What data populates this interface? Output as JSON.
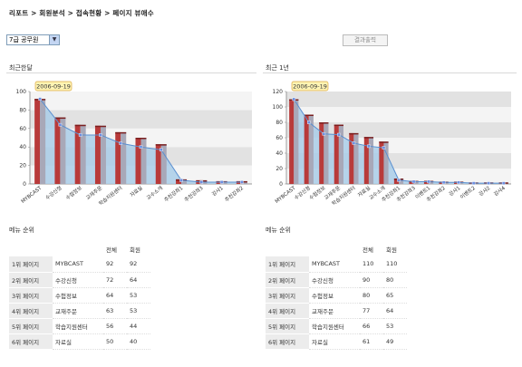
{
  "breadcrumb": "리포트 > 회원분석 > 접속현황 > 페이지 뷰애수",
  "filter": {
    "selected": "7급 공무원"
  },
  "result_button": "결과출력",
  "panels": [
    {
      "title": "최근한달",
      "chart_data": {
        "type": "bar",
        "date_label": "2006-09-19",
        "ylim": [
          0,
          100
        ],
        "yticks": [
          0,
          20,
          40,
          60,
          80,
          100
        ],
        "categories": [
          "MYBCAST",
          "수강신청",
          "수험정보",
          "교재주문",
          "학습지원센터",
          "자료실",
          "교수소개",
          "추천강좌1",
          "추천강좌3",
          "강사1",
          "추천강좌2"
        ],
        "series": [
          {
            "values": [
              92,
              72,
              64,
              63,
              56,
              50,
              43,
              5,
              4,
              3,
              3
            ]
          },
          {
            "values": [
              92,
              64,
              53,
              53,
              44,
              40,
              37,
              4,
              2,
              2,
              2
            ]
          }
        ]
      }
    },
    {
      "title": "최근 1년",
      "chart_data": {
        "type": "bar",
        "date_label": "2006-09-19",
        "ylim": [
          0,
          120
        ],
        "yticks": [
          0,
          20,
          40,
          60,
          80,
          100,
          120
        ],
        "categories": [
          "MYBCAST",
          "수강신청",
          "수험정보",
          "교재주문",
          "학습지원센터",
          "자료실",
          "교수소개",
          "추천강좌1",
          "추천강좌3",
          "이벤트1",
          "추천강좌2",
          "강사1",
          "이벤트2",
          "강사2",
          "강사4"
        ],
        "series": [
          {
            "values": [
              110,
              90,
              80,
              77,
              66,
              61,
              55,
              7,
              4,
              4,
              3,
              3,
              2,
              2,
              2
            ]
          },
          {
            "values": [
              110,
              80,
              65,
              64,
              53,
              49,
              47,
              5,
              3,
              3,
              2,
              2,
              1,
              1,
              1
            ]
          }
        ]
      }
    }
  ],
  "menu_rank": {
    "title": "메뉴 순위",
    "col_total": "전체",
    "col_member": "회원",
    "left": [
      {
        "rank": "1위 페이지",
        "name": "MYBCAST",
        "total": "92",
        "member": "92"
      },
      {
        "rank": "2위 페이지",
        "name": "수강신청",
        "total": "72",
        "member": "64"
      },
      {
        "rank": "3위 페이지",
        "name": "수험정보",
        "total": "64",
        "member": "53"
      },
      {
        "rank": "4위 페이지",
        "name": "교재주문",
        "total": "63",
        "member": "53"
      },
      {
        "rank": "5위 페이지",
        "name": "학습지원센터",
        "total": "56",
        "member": "44"
      },
      {
        "rank": "6위 페이지",
        "name": "자료실",
        "total": "50",
        "member": "40"
      }
    ],
    "right": [
      {
        "rank": "1위 페이지",
        "name": "MYBCAST",
        "total": "110",
        "member": "110"
      },
      {
        "rank": "2위 페이지",
        "name": "수강신청",
        "total": "90",
        "member": "80"
      },
      {
        "rank": "3위 페이지",
        "name": "수험정보",
        "total": "80",
        "member": "65"
      },
      {
        "rank": "4위 페이지",
        "name": "교재주문",
        "total": "77",
        "member": "64"
      },
      {
        "rank": "5위 페이지",
        "name": "학습지원센터",
        "total": "66",
        "member": "53"
      },
      {
        "rank": "6위 페이지",
        "name": "자료실",
        "total": "61",
        "member": "49"
      }
    ]
  },
  "colors": {
    "bar_total": "#b83a3a",
    "bar_member": "#a8a8b8",
    "area_fill": "#a9cde8",
    "line": "#5a8fd0",
    "date_tag_bg": "#fff4b3",
    "date_tag_border": "#d9a640"
  }
}
